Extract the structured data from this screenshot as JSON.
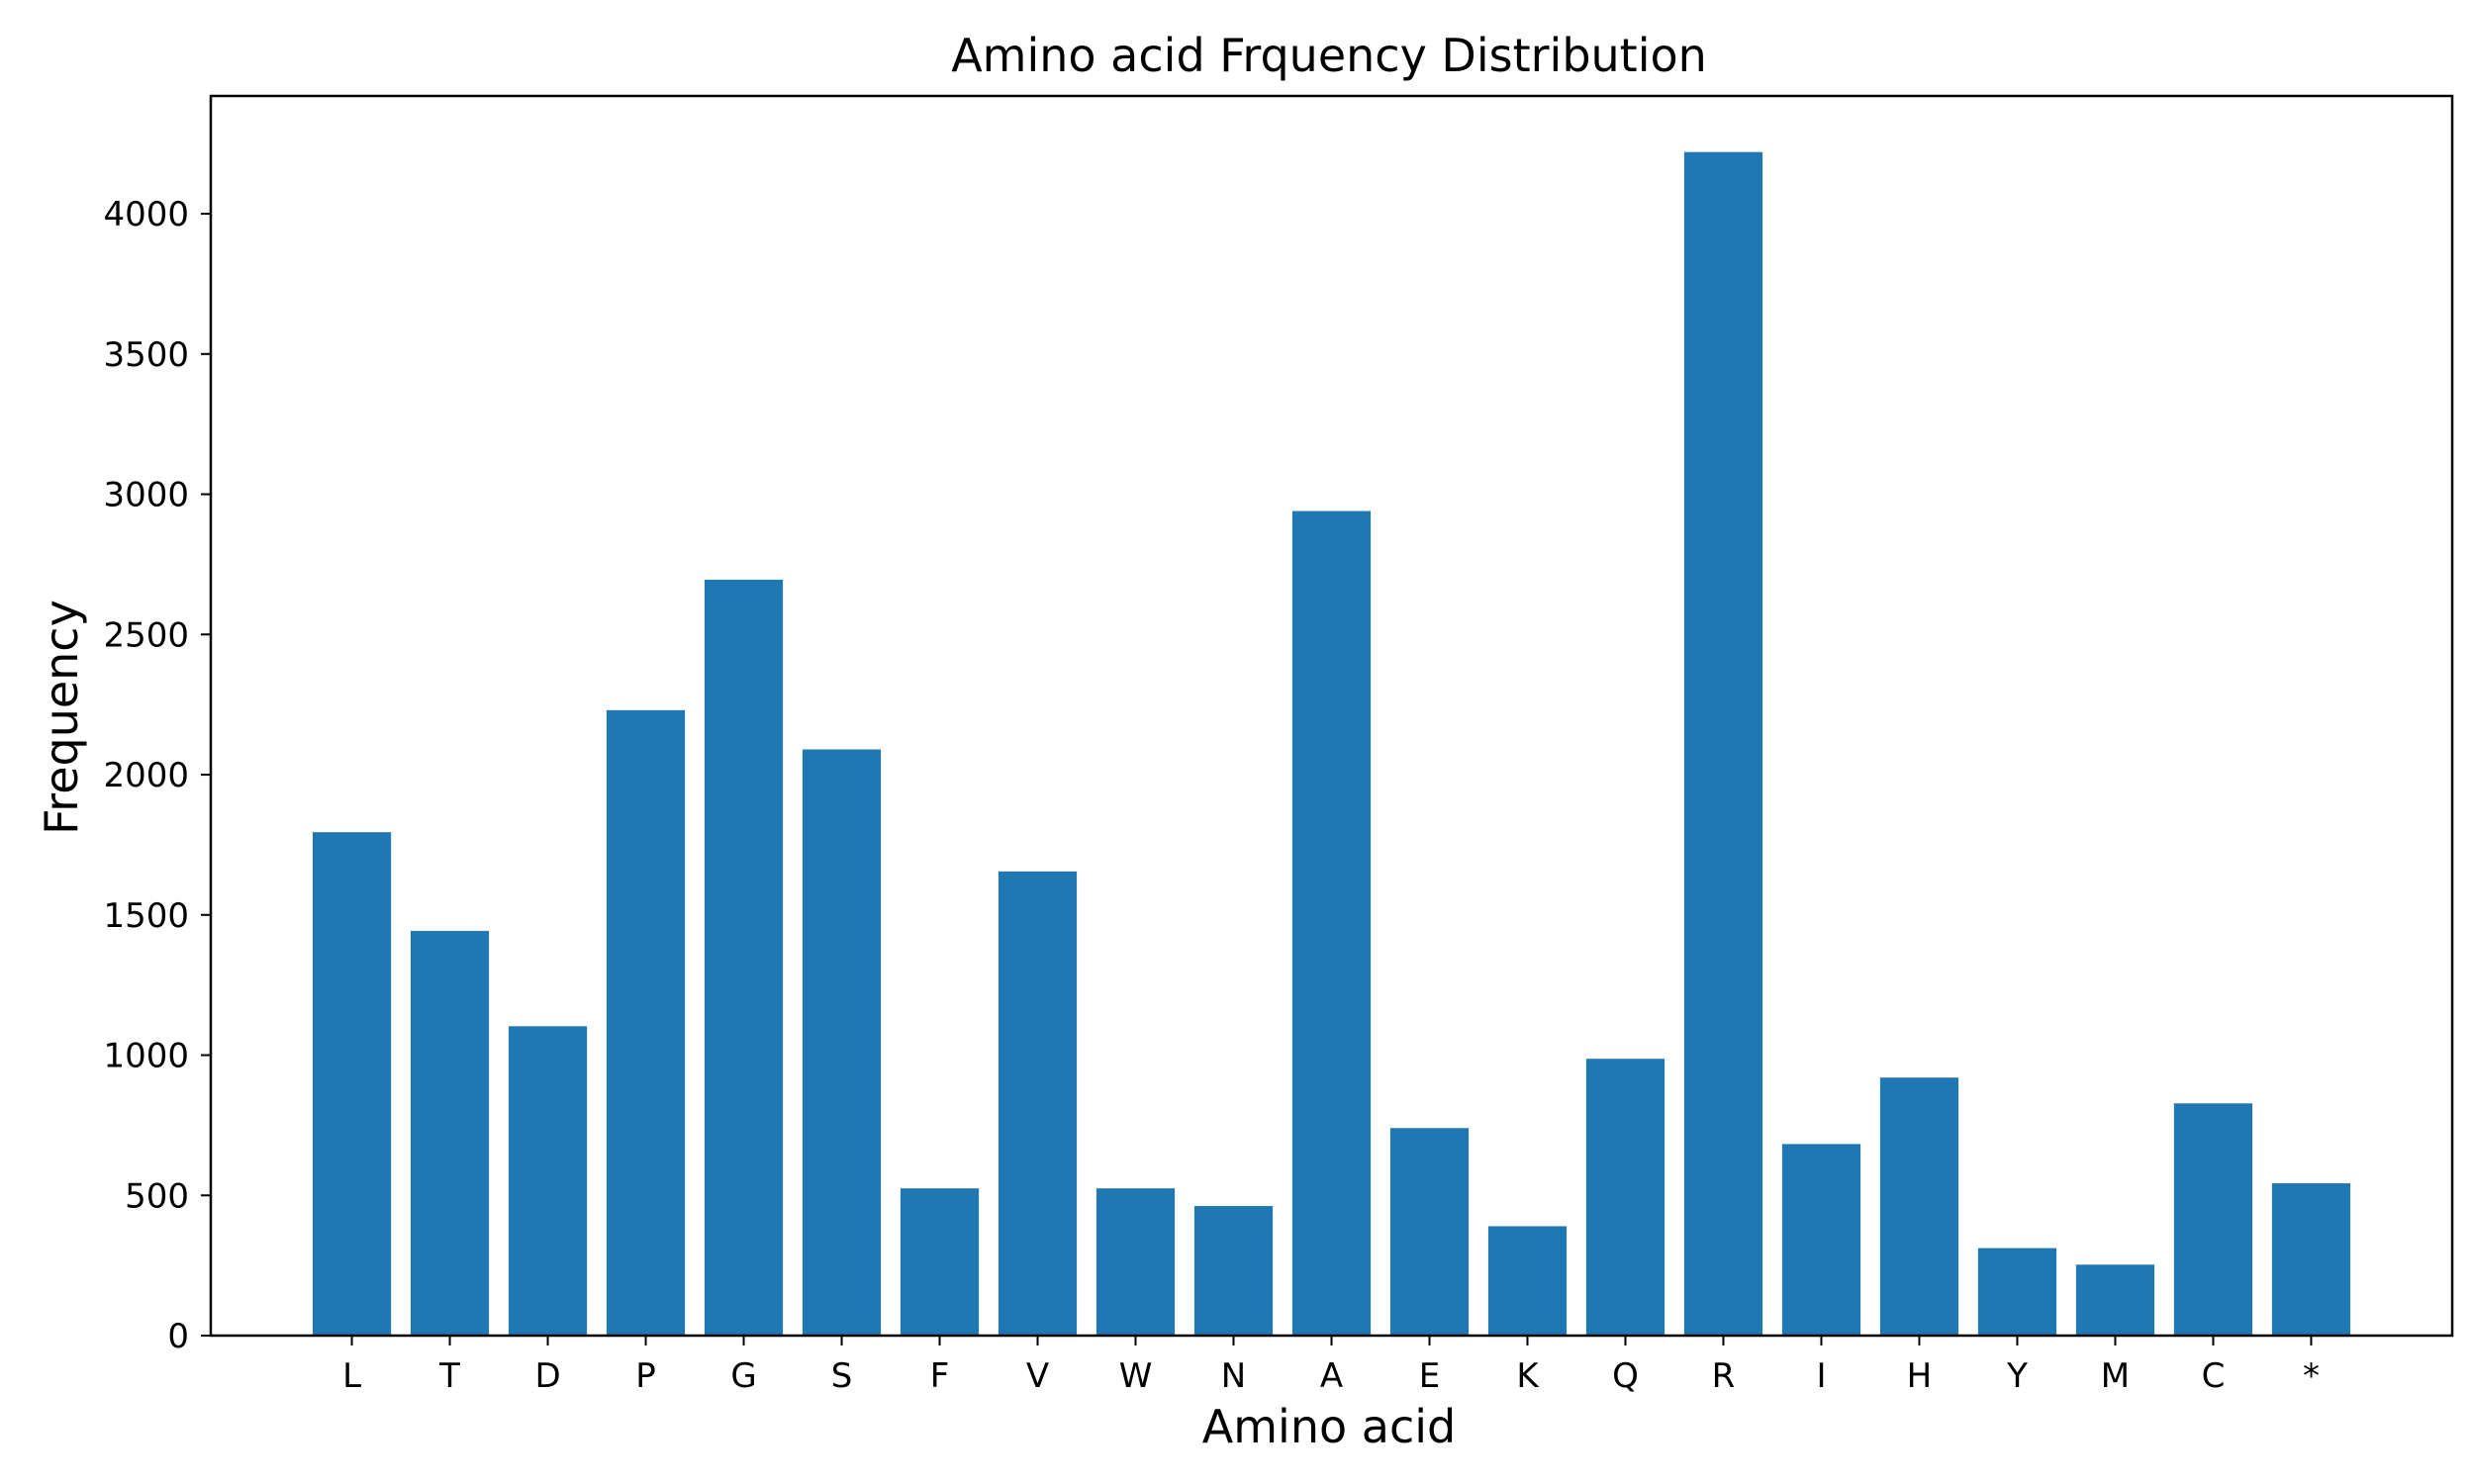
{
  "chart_data": {
    "type": "bar",
    "title": "Amino acid Frquency Distribution",
    "xlabel": "Amino acid",
    "ylabel": "Frequency",
    "categories": [
      "L",
      "T",
      "D",
      "P",
      "G",
      "S",
      "F",
      "V",
      "W",
      "N",
      "A",
      "E",
      "K",
      "Q",
      "R",
      "I",
      "H",
      "Y",
      "M",
      "C",
      "*"
    ],
    "values": [
      1795,
      1443,
      1103,
      2230,
      2695,
      2090,
      525,
      1655,
      525,
      462,
      2940,
      740,
      390,
      987,
      4220,
      683,
      920,
      312,
      253,
      828,
      543
    ],
    "ylim": [
      0,
      4420
    ],
    "yticks": [
      0,
      500,
      1000,
      1500,
      2000,
      2500,
      3000,
      3500,
      4000
    ],
    "grid": false,
    "legend": "none",
    "bar_color": "#1f77b4"
  }
}
